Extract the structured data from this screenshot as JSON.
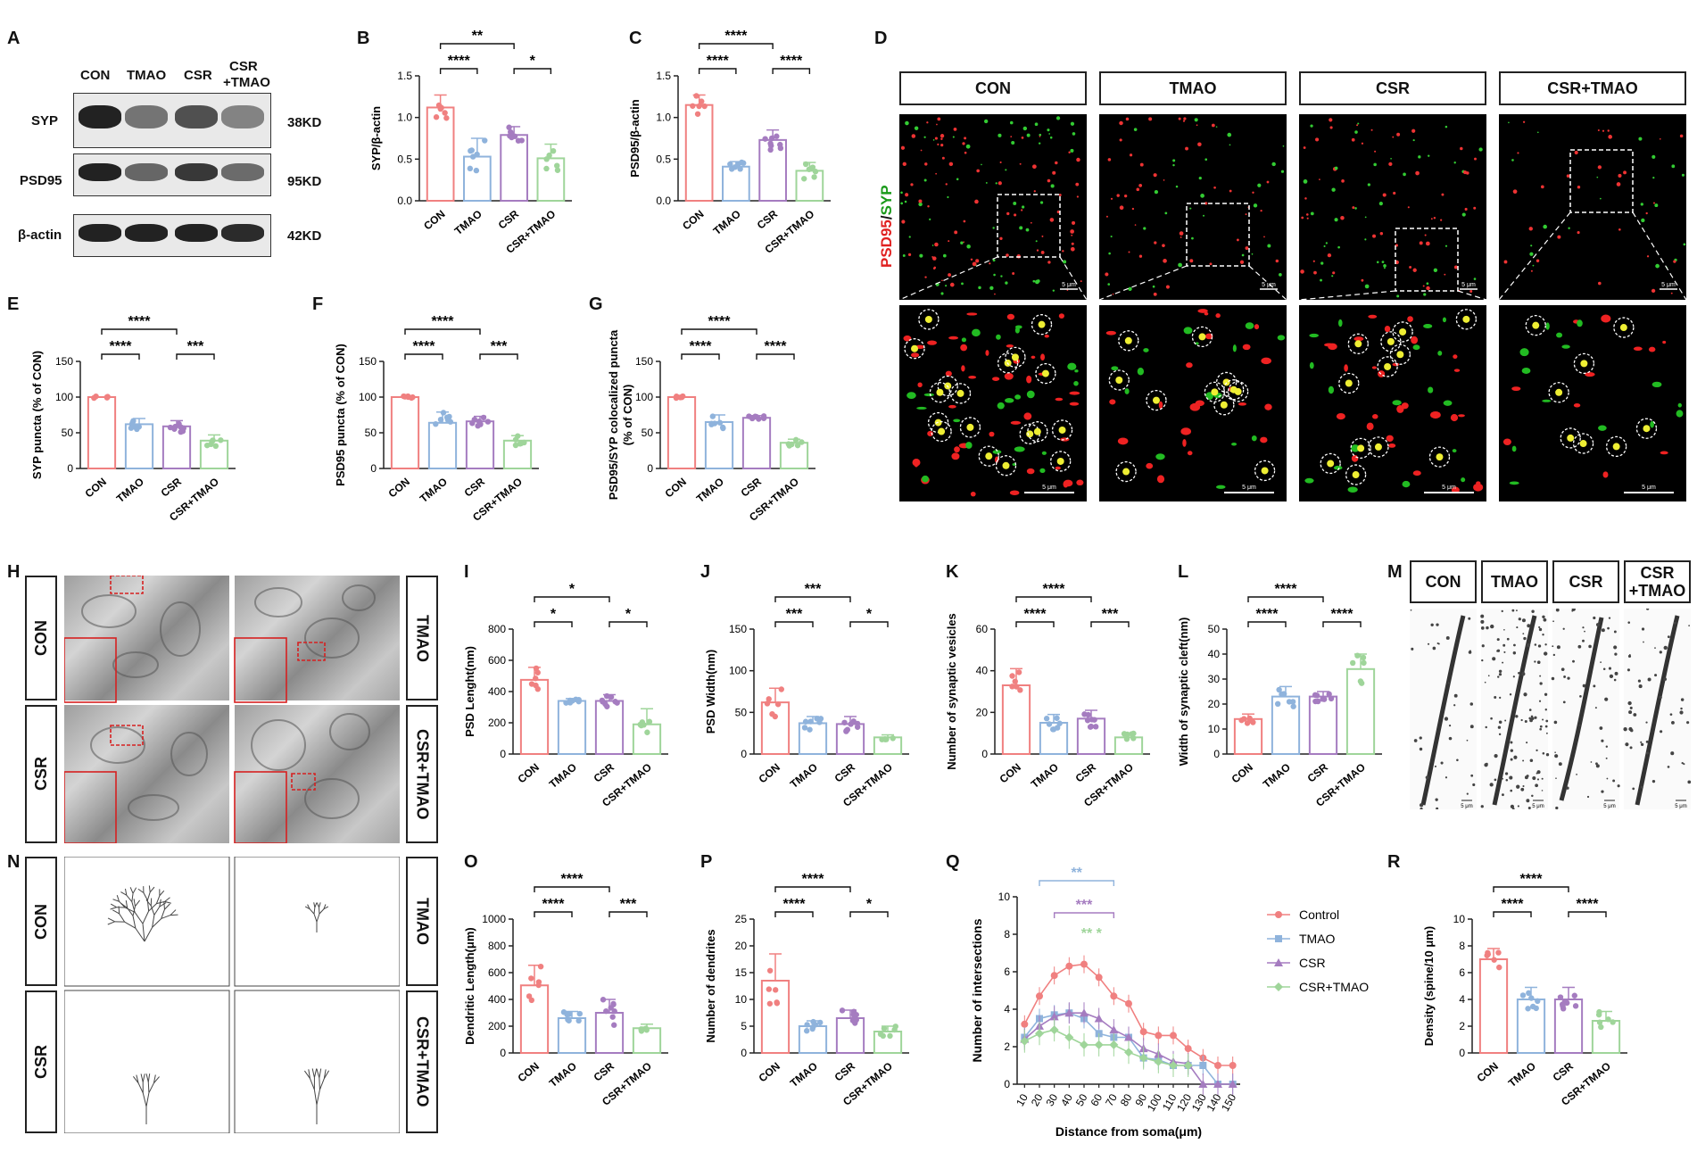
{
  "panel_letters": {
    "A": "A",
    "B": "B",
    "C": "C",
    "D": "D",
    "E": "E",
    "F": "F",
    "G": "G",
    "H": "H",
    "I": "I",
    "J": "J",
    "K": "K",
    "L": "L",
    "M": "M",
    "N": "N",
    "O": "O",
    "P": "P",
    "Q": "Q",
    "R": "R"
  },
  "western_blot": {
    "lanes": [
      "CON",
      "TMAO",
      "CSR",
      "CSR\n+TMAO"
    ],
    "lane_line1": [
      "CON",
      "TMAO",
      "CSR",
      "CSR"
    ],
    "lane4_line2": "+TMAO",
    "rows": [
      {
        "protein": "SYP",
        "size": "38KD",
        "intensity": [
          1.0,
          0.45,
          0.7,
          0.35
        ]
      },
      {
        "protein": "PSD95",
        "size": "95KD",
        "intensity": [
          1.0,
          0.55,
          0.85,
          0.5
        ]
      },
      {
        "protein": "β-actin",
        "size": "42KD",
        "intensity": [
          1.0,
          1.0,
          1.0,
          0.95
        ]
      }
    ]
  },
  "groups": [
    "CON",
    "TMAO",
    "CSR",
    "CSR+TMAO"
  ],
  "colors": {
    "CON": "#f08080",
    "TMAO": "#8fb3dc",
    "CSR": "#a57cc0",
    "CSR+TMAO": "#9fd59a"
  },
  "confocal": {
    "headers": [
      "CON",
      "TMAO",
      "CSR",
      "CSR+TMAO"
    ],
    "side_label_red": "PSD95",
    "side_label_sep": "/",
    "side_label_green": "SYP",
    "scale_top": "5 μm",
    "scale_bottom": "5 μm"
  },
  "em_panel": {
    "left": [
      "CON",
      "CSR"
    ],
    "right": [
      "TMAO",
      "CSR+TMAO"
    ]
  },
  "spine_panel": {
    "headers": [
      "CON",
      "TMAO",
      "CSR",
      "CSR\n+TMAO"
    ],
    "h1": "CON",
    "h2": "TMAO",
    "h3": "CSR",
    "h4a": "CSR",
    "h4b": "+TMAO",
    "scale": "5 μm"
  },
  "tracing_panel": {
    "left": [
      "CON",
      "CSR"
    ],
    "right": [
      "TMAO",
      "CSR+TMAO"
    ]
  },
  "chart_data": [
    {
      "id": "B",
      "type": "bar",
      "categories": [
        "CON",
        "TMAO",
        "CSR",
        "CSR+TMAO"
      ],
      "values": [
        1.12,
        0.53,
        0.79,
        0.51
      ],
      "errors": [
        0.15,
        0.22,
        0.1,
        0.17
      ],
      "ylabel": "SYP/β-actin",
      "ylim": [
        0,
        1.5
      ],
      "yticks": [
        "0.0",
        "0.5",
        "1.0",
        "1.5"
      ],
      "sig": [
        {
          "from": 0,
          "to": 1,
          "text": "****",
          "level": 1
        },
        {
          "from": 2,
          "to": 3,
          "text": "*",
          "level": 1
        },
        {
          "from": 0,
          "to": 2,
          "text": "**",
          "level": 2
        }
      ]
    },
    {
      "id": "C",
      "type": "bar",
      "categories": [
        "CON",
        "TMAO",
        "CSR",
        "CSR+TMAO"
      ],
      "values": [
        1.15,
        0.41,
        0.73,
        0.36
      ],
      "errors": [
        0.12,
        0.06,
        0.12,
        0.1
      ],
      "ylabel": "PSD95/β-actin",
      "ylim": [
        0,
        1.5
      ],
      "yticks": [
        "0.0",
        "0.5",
        "1.0",
        "1.5"
      ],
      "sig": [
        {
          "from": 0,
          "to": 1,
          "text": "****",
          "level": 1
        },
        {
          "from": 2,
          "to": 3,
          "text": "****",
          "level": 1
        },
        {
          "from": 0,
          "to": 2,
          "text": "****",
          "level": 2
        }
      ]
    },
    {
      "id": "E",
      "type": "bar",
      "categories": [
        "CON",
        "TMAO",
        "CSR",
        "CSR+TMAO"
      ],
      "values": [
        100,
        62,
        59,
        39
      ],
      "errors": [
        0,
        8,
        8,
        8
      ],
      "ylabel": "SYP puncta (% of CON)",
      "ylim": [
        0,
        150
      ],
      "yticks": [
        "0",
        "50",
        "100",
        "150"
      ],
      "sig": [
        {
          "from": 0,
          "to": 1,
          "text": "****",
          "level": 1
        },
        {
          "from": 2,
          "to": 3,
          "text": "***",
          "level": 1
        },
        {
          "from": 0,
          "to": 2,
          "text": "****",
          "level": 2
        }
      ]
    },
    {
      "id": "F",
      "type": "bar",
      "categories": [
        "CON",
        "TMAO",
        "CSR",
        "CSR+TMAO"
      ],
      "values": [
        100,
        64,
        66,
        39
      ],
      "errors": [
        0,
        15,
        7,
        7
      ],
      "ylabel": "PSD95 puncta (% of CON)",
      "ylim": [
        0,
        150
      ],
      "yticks": [
        "0",
        "50",
        "100",
        "150"
      ],
      "sig": [
        {
          "from": 0,
          "to": 1,
          "text": "****",
          "level": 1
        },
        {
          "from": 2,
          "to": 3,
          "text": "***",
          "level": 1
        },
        {
          "from": 0,
          "to": 2,
          "text": "****",
          "level": 2
        }
      ]
    },
    {
      "id": "G",
      "type": "bar",
      "categories": [
        "CON",
        "TMAO",
        "CSR",
        "CSR+TMAO"
      ],
      "values": [
        100,
        65,
        71,
        36
      ],
      "errors": [
        0,
        10,
        3,
        5
      ],
      "ylabel": "PSD95/SYP colocalized puncta",
      "ylabel2": "(% of CON)",
      "ylim": [
        0,
        150
      ],
      "yticks": [
        "0",
        "50",
        "100",
        "150"
      ],
      "sig": [
        {
          "from": 0,
          "to": 1,
          "text": "****",
          "level": 1
        },
        {
          "from": 2,
          "to": 3,
          "text": "****",
          "level": 1
        },
        {
          "from": 0,
          "to": 2,
          "text": "****",
          "level": 2
        }
      ]
    },
    {
      "id": "I",
      "type": "bar",
      "categories": [
        "CON",
        "TMAO",
        "CSR",
        "CSR+TMAO"
      ],
      "values": [
        475,
        340,
        340,
        190
      ],
      "errors": [
        80,
        15,
        40,
        100
      ],
      "ylabel": "PSD Lenght(nm)",
      "ylim": [
        0,
        800
      ],
      "yticks": [
        "0",
        "200",
        "400",
        "600",
        "800"
      ],
      "sig": [
        {
          "from": 0,
          "to": 1,
          "text": "*",
          "level": 1
        },
        {
          "from": 2,
          "to": 3,
          "text": "*",
          "level": 1
        },
        {
          "from": 0,
          "to": 2,
          "text": "*",
          "level": 2
        }
      ]
    },
    {
      "id": "J",
      "type": "bar",
      "categories": [
        "CON",
        "TMAO",
        "CSR",
        "CSR+TMAO"
      ],
      "values": [
        62,
        37,
        36,
        20
      ],
      "errors": [
        17,
        8,
        9,
        3
      ],
      "ylabel": "PSD Width(nm)",
      "ylim": [
        0,
        150
      ],
      "yticks": [
        "0",
        "50",
        "100",
        "150"
      ],
      "sig": [
        {
          "from": 0,
          "to": 1,
          "text": "***",
          "level": 1
        },
        {
          "from": 2,
          "to": 3,
          "text": "*",
          "level": 1
        },
        {
          "from": 0,
          "to": 2,
          "text": "***",
          "level": 2
        }
      ]
    },
    {
      "id": "K",
      "type": "bar",
      "categories": [
        "CON",
        "TMAO",
        "CSR",
        "CSR+TMAO"
      ],
      "values": [
        33,
        15,
        17,
        8
      ],
      "errors": [
        8,
        4,
        4,
        2
      ],
      "ylabel": "Number of synaptic vesicles",
      "ylim": [
        0,
        60
      ],
      "yticks": [
        "0",
        "20",
        "40",
        "60"
      ],
      "sig": [
        {
          "from": 0,
          "to": 1,
          "text": "****",
          "level": 1
        },
        {
          "from": 2,
          "to": 3,
          "text": "***",
          "level": 1
        },
        {
          "from": 0,
          "to": 2,
          "text": "****",
          "level": 2
        }
      ]
    },
    {
      "id": "L",
      "type": "bar",
      "categories": [
        "CON",
        "TMAO",
        "CSR",
        "CSR+TMAO"
      ],
      "values": [
        14,
        23,
        23,
        34
      ],
      "errors": [
        2,
        4,
        2,
        6
      ],
      "ylabel": "Width of synaptic cleft(nm)",
      "ylim": [
        0,
        50
      ],
      "yticks": [
        "0",
        "10",
        "20",
        "30",
        "40",
        "50"
      ],
      "sig": [
        {
          "from": 0,
          "to": 1,
          "text": "****",
          "level": 1
        },
        {
          "from": 2,
          "to": 3,
          "text": "****",
          "level": 1
        },
        {
          "from": 0,
          "to": 2,
          "text": "****",
          "level": 2
        }
      ]
    },
    {
      "id": "O",
      "type": "bar",
      "categories": [
        "CON",
        "TMAO",
        "CSR",
        "CSR+TMAO"
      ],
      "values": [
        505,
        260,
        300,
        185
      ],
      "errors": [
        150,
        50,
        100,
        30
      ],
      "ylabel": "Dendritic Length(μm)",
      "ylim": [
        0,
        1000
      ],
      "yticks": [
        "0",
        "200",
        "400",
        "600",
        "800",
        "1000"
      ],
      "sig": [
        {
          "from": 0,
          "to": 1,
          "text": "****",
          "level": 1
        },
        {
          "from": 2,
          "to": 3,
          "text": "***",
          "level": 1
        },
        {
          "from": 0,
          "to": 2,
          "text": "****",
          "level": 2
        }
      ]
    },
    {
      "id": "P",
      "type": "bar",
      "categories": [
        "CON",
        "TMAO",
        "CSR",
        "CSR+TMAO"
      ],
      "values": [
        13.5,
        5,
        6.5,
        4
      ],
      "errors": [
        5,
        1,
        1.5,
        1
      ],
      "ylabel": "Number of dendrites",
      "ylim": [
        0,
        25
      ],
      "yticks": [
        "0",
        "5",
        "10",
        "15",
        "20",
        "25"
      ],
      "sig": [
        {
          "from": 0,
          "to": 1,
          "text": "****",
          "level": 1
        },
        {
          "from": 2,
          "to": 3,
          "text": "*",
          "level": 1
        },
        {
          "from": 0,
          "to": 2,
          "text": "****",
          "level": 2
        }
      ]
    },
    {
      "id": "R",
      "type": "bar",
      "categories": [
        "CON",
        "TMAO",
        "CSR",
        "CSR+TMAO"
      ],
      "values": [
        7,
        4,
        4,
        2.4
      ],
      "errors": [
        0.8,
        0.9,
        0.9,
        0.7
      ],
      "ylabel": "Density (spine/10 μm)",
      "ylim": [
        0,
        10
      ],
      "yticks": [
        "0",
        "2",
        "4",
        "6",
        "8",
        "10"
      ],
      "sig": [
        {
          "from": 0,
          "to": 1,
          "text": "****",
          "level": 1
        },
        {
          "from": 2,
          "to": 3,
          "text": "****",
          "level": 1
        },
        {
          "from": 0,
          "to": 2,
          "text": "****",
          "level": 2
        }
      ]
    },
    {
      "id": "Q",
      "type": "line",
      "xlabel": "Distance from soma(μm)",
      "ylabel": "Number of intersections",
      "ylim": [
        0,
        10
      ],
      "yticks": [
        "0",
        "2",
        "4",
        "6",
        "8",
        "10"
      ],
      "x": [
        10,
        20,
        30,
        40,
        50,
        60,
        70,
        80,
        90,
        100,
        110,
        120,
        130,
        140,
        150
      ],
      "series": [
        {
          "name": "Control",
          "color": "#f08080",
          "marker": "circle",
          "values": [
            3.2,
            4.7,
            5.8,
            6.3,
            6.4,
            5.7,
            4.7,
            4.3,
            2.8,
            2.6,
            2.6,
            1.9,
            1.4,
            1.0,
            1.0
          ]
        },
        {
          "name": "TMAO",
          "color": "#8fb3dc",
          "marker": "square",
          "values": [
            2.5,
            3.5,
            3.7,
            3.8,
            3.5,
            2.7,
            2.5,
            2.5,
            1.4,
            1.3,
            1.0,
            1.0,
            1.0,
            0,
            0
          ]
        },
        {
          "name": "CSR",
          "color": "#a57cc0",
          "marker": "triangle",
          "values": [
            2.4,
            3.1,
            3.6,
            3.8,
            3.8,
            3.5,
            2.9,
            2.5,
            1.9,
            1.6,
            1.2,
            1.1,
            0,
            0,
            0
          ]
        },
        {
          "name": "CSR+TMAO",
          "color": "#9fd59a",
          "marker": "diamond",
          "values": [
            2.3,
            2.7,
            2.9,
            2.5,
            2.1,
            2.1,
            2.1,
            1.7,
            1.4,
            1.2,
            1.0,
            1.0,
            null,
            null,
            null
          ]
        }
      ],
      "sig": [
        {
          "text": "**",
          "color": "#8fb3dc",
          "from": 20,
          "to": 70
        },
        {
          "text": "***",
          "color": "#a57cc0",
          "from": 30,
          "to": 70
        },
        {
          "text": "** *",
          "color": "#9fd59a",
          "x": 55
        }
      ]
    }
  ]
}
